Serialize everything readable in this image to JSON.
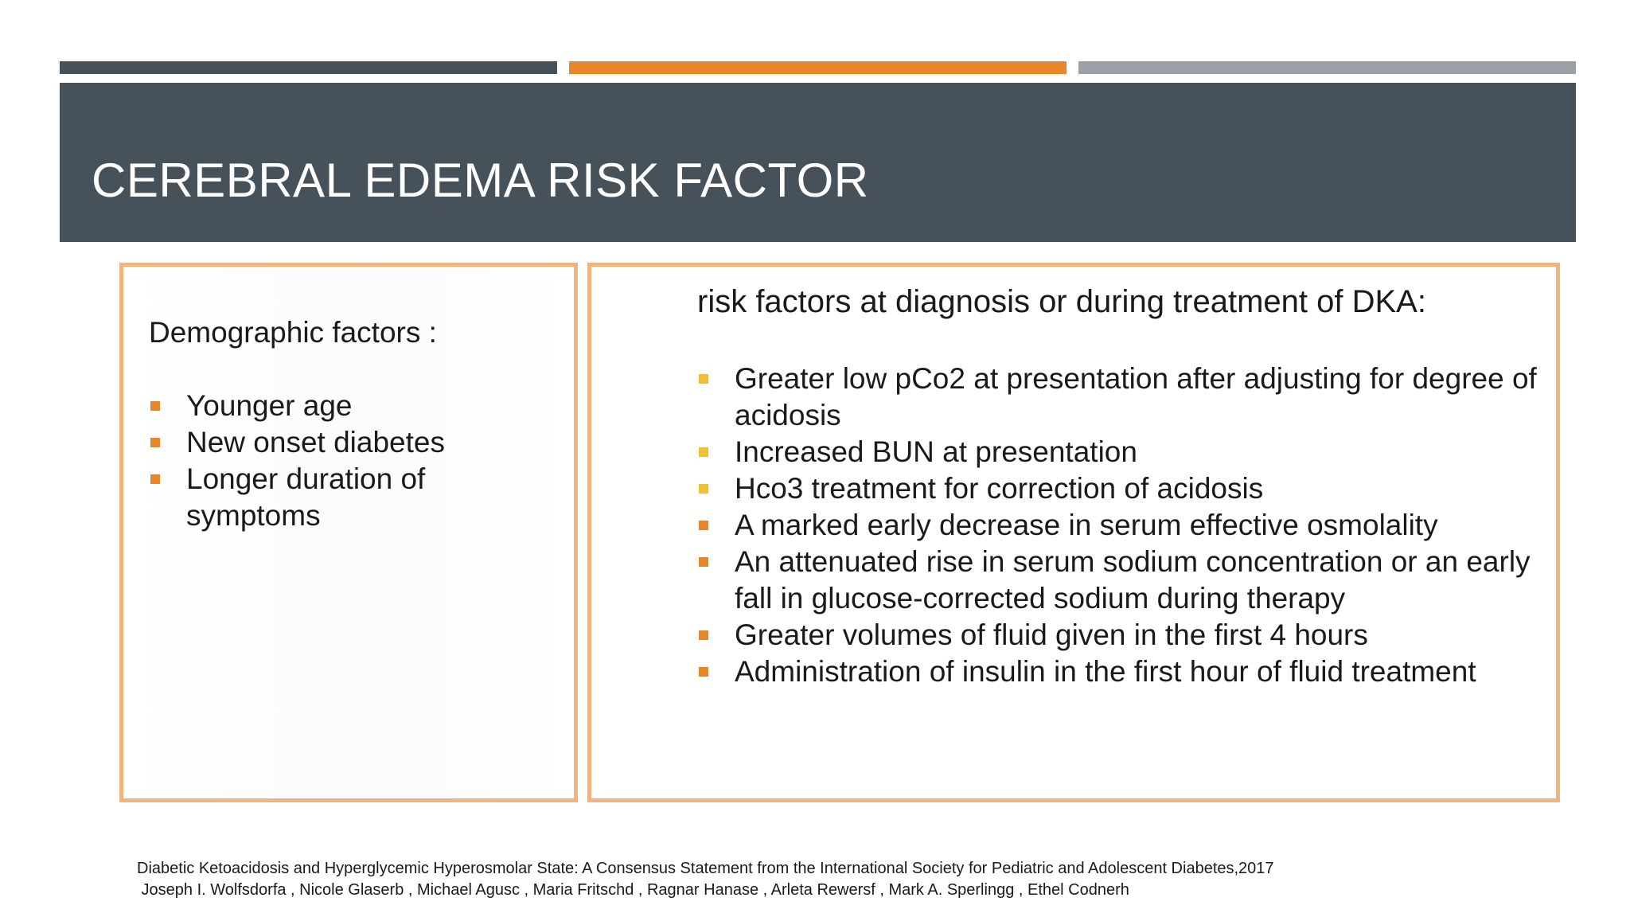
{
  "slide": {
    "title": "CEREBRAL EDEMA RISK FACTOR",
    "colors": {
      "title_band": "#475159",
      "accent_orange": "#E8862A",
      "accent_grey": "#9AA0A6",
      "box_border": "#F2B47E",
      "bullet_yellow": "#F2C037"
    }
  },
  "left_panel": {
    "heading": "Demographic factors :",
    "items": [
      "Younger age",
      "New onset diabetes",
      "Longer duration of symptoms"
    ]
  },
  "right_panel": {
    "heading": "risk factors at diagnosis or during treatment of DKA:",
    "items": [
      "Greater low pCo2 at presentation after adjusting for degree of acidosis",
      "Increased BUN at presentation",
      "Hco3 treatment for correction of acidosis",
      "A marked early decrease in serum effective osmolality",
      "An attenuated rise in serum sodium concentration or an early fall in glucose-corrected sodium during therapy",
      "Greater volumes of fluid given in the first 4 hours",
      "Administration of insulin in the first hour of fluid treatment"
    ]
  },
  "reference": {
    "line1": "Diabetic Ketoacidosis and Hyperglycemic Hyperosmolar State: A Consensus Statement from the International Society for Pediatric and Adolescent Diabetes,2017",
    "line2": " Joseph I. Wolfsdorfa , Nicole Glaserb , Michael Agusc , Maria Fritschd , Ragnar Hanase , Arleta Rewersf , Mark A. Sperlingg , Ethel Codnerh"
  }
}
